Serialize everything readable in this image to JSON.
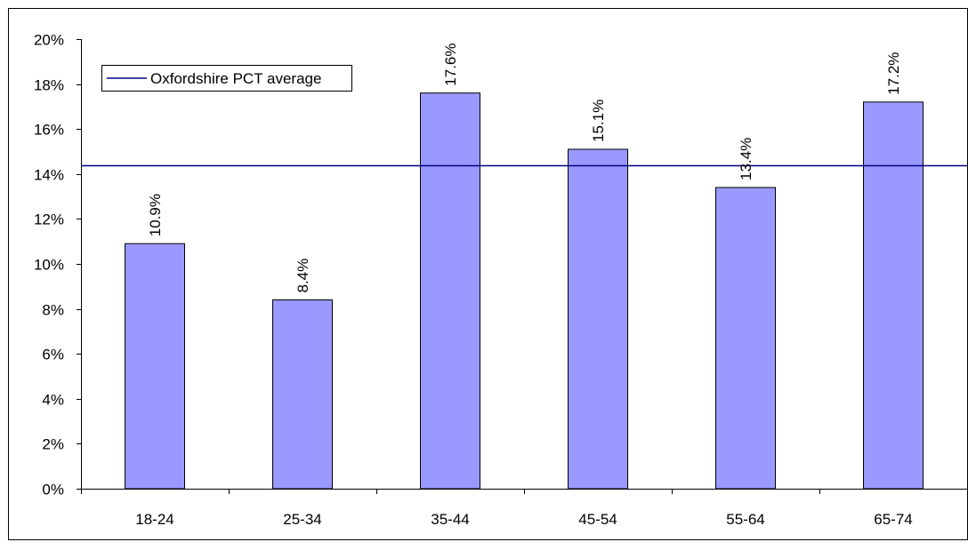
{
  "chart_data": {
    "type": "bar",
    "categories": [
      "18-24",
      "25-34",
      "35-44",
      "45-54",
      "55-64",
      "65-74"
    ],
    "values": [
      10.9,
      8.4,
      17.6,
      15.1,
      13.4,
      17.2
    ],
    "data_labels": [
      "10.9%",
      "8.4%",
      "17.6%",
      "15.1%",
      "13.4%",
      "17.2%"
    ],
    "reference_line": {
      "name": "Oxfordshire PCT average",
      "value": 14.4
    },
    "ylim": [
      0,
      20
    ],
    "y_ticks": [
      0,
      2,
      4,
      6,
      8,
      10,
      12,
      14,
      16,
      18,
      20
    ],
    "y_tick_labels": [
      "0%",
      "2%",
      "4%",
      "6%",
      "8%",
      "10%",
      "12%",
      "14%",
      "16%",
      "18%",
      "20%"
    ],
    "legend": {
      "entries": [
        "Oxfordshire PCT average"
      ],
      "position": "top-left"
    },
    "grid": false,
    "colors": {
      "bar_fill": "#9999ff",
      "bar_stroke": "#000000",
      "reference_line": "#000080",
      "axis": "#000000",
      "border": "#000000"
    }
  }
}
